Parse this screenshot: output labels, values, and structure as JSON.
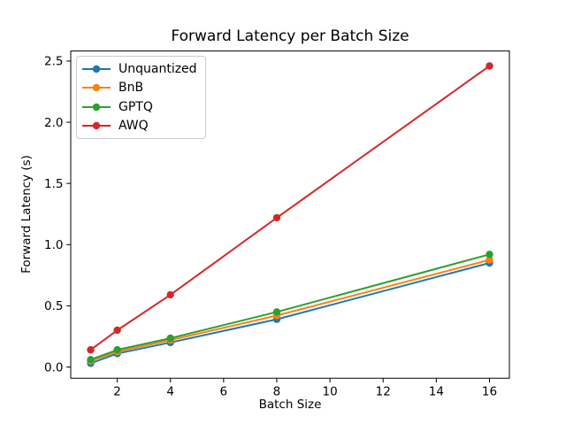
{
  "figure": {
    "background": "#ffffff",
    "axis_color": "#000000"
  },
  "chart_data": {
    "type": "line",
    "title": "Forward Latency per Batch Size",
    "xlabel": "Batch Size",
    "ylabel": "Forward Latency (s)",
    "x": [
      1,
      2,
      4,
      8,
      16
    ],
    "series": [
      {
        "name": "Unquantized",
        "color": "#1f77b4",
        "values": [
          0.03,
          0.11,
          0.2,
          0.39,
          0.85
        ]
      },
      {
        "name": "BnB",
        "color": "#ff7f0e",
        "values": [
          0.05,
          0.125,
          0.22,
          0.42,
          0.875
        ]
      },
      {
        "name": "GPTQ",
        "color": "#2ca02c",
        "values": [
          0.06,
          0.14,
          0.235,
          0.45,
          0.92
        ]
      },
      {
        "name": "AWQ",
        "color": "#d62728",
        "values": [
          0.14,
          0.3,
          0.59,
          1.22,
          2.46
        ]
      }
    ],
    "xticks": [
      2,
      4,
      6,
      8,
      10,
      12,
      14,
      16
    ],
    "xtick_labels": [
      "2",
      "4",
      "6",
      "8",
      "10",
      "12",
      "14",
      "16"
    ],
    "yticks": [
      0.0,
      0.5,
      1.0,
      1.5,
      2.0,
      2.5
    ],
    "ytick_labels": [
      "0.0",
      "0.5",
      "1.0",
      "1.5",
      "2.0",
      "2.5"
    ],
    "xlim": [
      0.25,
      16.75
    ],
    "ylim": [
      -0.092,
      2.582
    ],
    "grid": false,
    "legend_position": "upper left"
  }
}
